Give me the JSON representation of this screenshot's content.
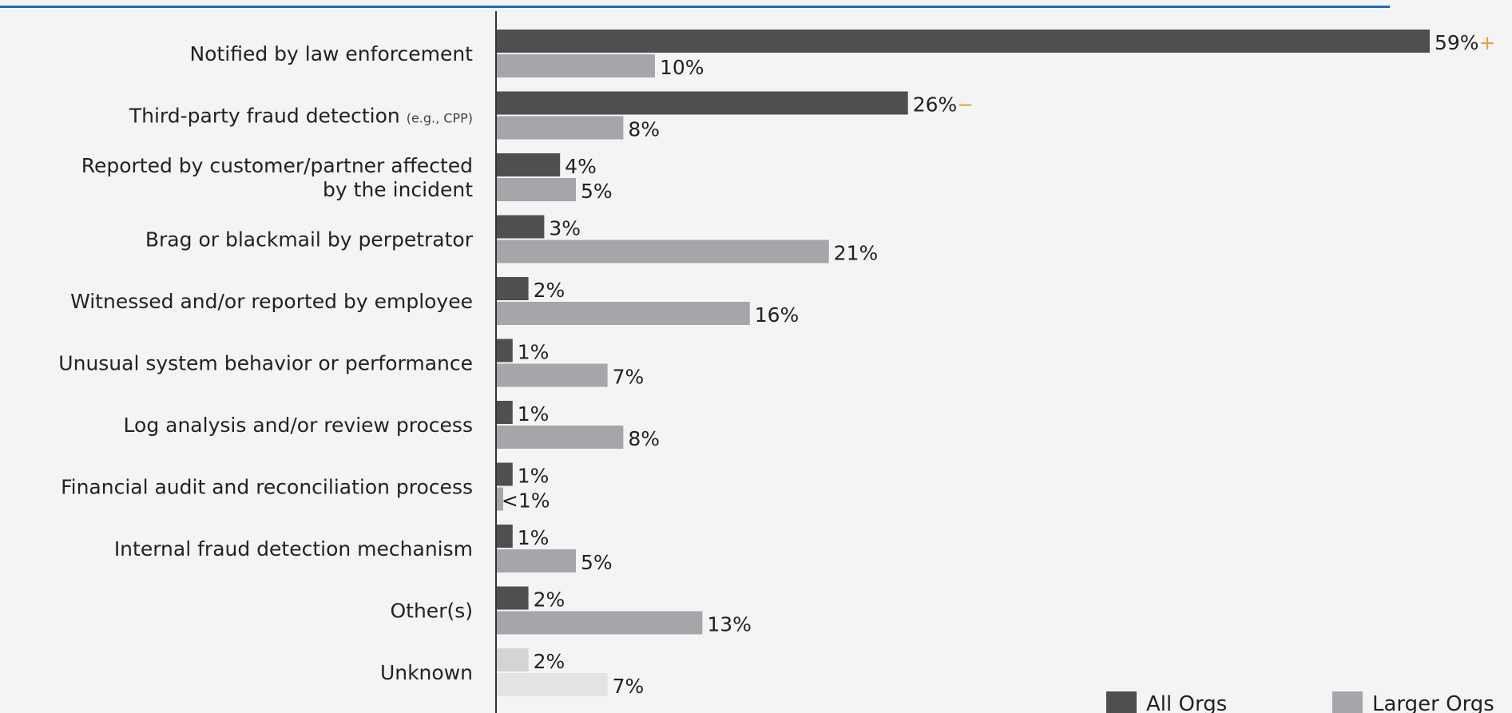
{
  "chart_data": {
    "type": "bar",
    "orientation": "horizontal",
    "title": "",
    "xlabel": "",
    "ylabel": "",
    "xlim": [
      0,
      59
    ],
    "grid": false,
    "legend_position": "bottom-right",
    "categories": [
      {
        "label": "Notified by law enforcement",
        "sub": ""
      },
      {
        "label": "Third-party fraud detection",
        "sub": "(e.g., CPP)"
      },
      {
        "label": "Reported by customer/partner affected",
        "label2": "by the incident",
        "sub": ""
      },
      {
        "label": "Brag or blackmail by perpetrator",
        "sub": ""
      },
      {
        "label": "Witnessed and/or reported by employee",
        "sub": ""
      },
      {
        "label": "Unusual system behavior or performance",
        "sub": ""
      },
      {
        "label": "Log analysis and/or review process",
        "sub": ""
      },
      {
        "label": "Financial audit and reconciliation process",
        "sub": ""
      },
      {
        "label": "Internal fraud detection mechanism",
        "sub": ""
      },
      {
        "label": "Other(s)",
        "sub": ""
      },
      {
        "label": "Unknown",
        "sub": ""
      }
    ],
    "series": [
      {
        "name": "All Orgs",
        "color": "#4f4f4f",
        "values": [
          59,
          26,
          4,
          3,
          2,
          1,
          1,
          1,
          1,
          2,
          2
        ],
        "labels": [
          "59%",
          "26%",
          "4%",
          "3%",
          "2%",
          "1%",
          "1%",
          "1%",
          "1%",
          "2%",
          "2%"
        ],
        "markers": [
          "+",
          "−",
          "",
          "",
          "",
          "",
          "",
          "",
          "",
          "",
          ""
        ]
      },
      {
        "name": "Larger Orgs",
        "color": "#a4a6a9",
        "values": [
          10,
          8,
          5,
          21,
          16,
          7,
          8,
          0.4,
          5,
          13,
          7
        ],
        "labels": [
          "10%",
          "8%",
          "5%",
          "21%",
          "16%",
          "7%",
          "8%",
          "<1%",
          "5%",
          "13%",
          "7%"
        ],
        "markers": [
          "",
          "",
          "",
          "",
          "",
          "",
          "",
          "",
          "",
          "",
          ""
        ]
      }
    ],
    "unknown_colors": [
      "#d4d4d4",
      "#e4e4e4"
    ],
    "marker_color": "#e8a33d"
  }
}
